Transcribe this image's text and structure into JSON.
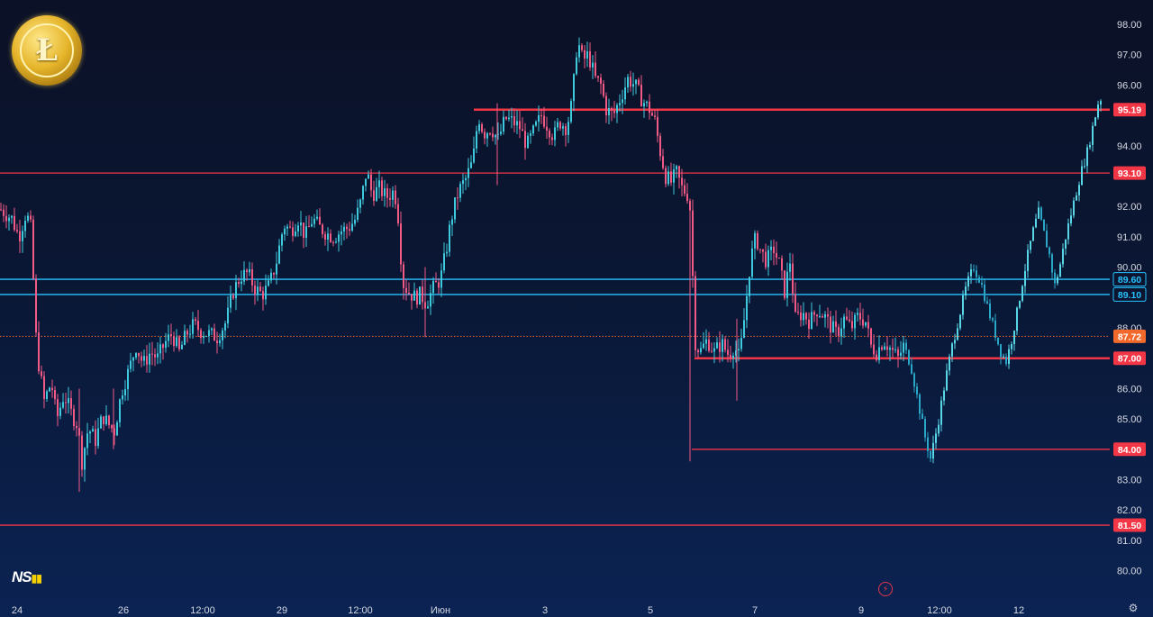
{
  "chart_data": {
    "type": "candlestick",
    "y_axis": {
      "min": 79.5,
      "max": 98.3,
      "ticks": [
        "98.00",
        "97.00",
        "96.00",
        "94.00",
        "92.00",
        "91.00",
        "90.00",
        "88.00",
        "86.00",
        "85.00",
        "84.00",
        "83.00",
        "82.00",
        "81.00",
        "80.00"
      ]
    },
    "x_axis": {
      "ticks": [
        "24",
        "26",
        "12:00",
        "29",
        "12:00",
        "Июн",
        "3",
        "5",
        "7",
        "9",
        "12:00",
        "12"
      ]
    },
    "price_levels": [
      {
        "value": 95.19,
        "label": "95.19",
        "color": "#f23645",
        "style": "solid-thick"
      },
      {
        "value": 93.1,
        "label": "93.10",
        "color": "#f23645",
        "style": "solid"
      },
      {
        "value": 89.6,
        "label": "89.60",
        "color": "#27c3ff",
        "style": "solid"
      },
      {
        "value": 89.1,
        "label": "89.10",
        "color": "#27c3ff",
        "style": "solid"
      },
      {
        "value": 87.72,
        "label": "87.72",
        "color": "#f2692b",
        "style": "dotted"
      },
      {
        "value": 87.0,
        "label": "87.00",
        "color": "#f23645",
        "style": "solid-thick"
      },
      {
        "value": 84.0,
        "label": "84.00",
        "color": "#f23645",
        "style": "solid"
      },
      {
        "value": 81.5,
        "label": "81.50",
        "color": "#f23645",
        "style": "solid"
      }
    ],
    "price_path": [
      [
        0,
        91.9
      ],
      [
        12,
        91.6
      ],
      [
        20,
        91.0
      ],
      [
        28,
        91.8
      ],
      [
        34,
        91.2
      ],
      [
        38,
        88.0
      ],
      [
        42,
        86.8
      ],
      [
        48,
        85.6
      ],
      [
        56,
        86.2
      ],
      [
        62,
        85.0
      ],
      [
        70,
        85.8
      ],
      [
        78,
        85.2
      ],
      [
        85,
        84.8
      ],
      [
        90,
        83.6
      ],
      [
        97,
        84.7
      ],
      [
        105,
        84.3
      ],
      [
        113,
        85.1
      ],
      [
        120,
        84.8
      ],
      [
        126,
        84.6
      ],
      [
        134,
        85.9
      ],
      [
        142,
        86.6
      ],
      [
        150,
        87.4
      ],
      [
        158,
        86.8
      ],
      [
        166,
        87.2
      ],
      [
        174,
        87.0
      ],
      [
        182,
        87.5
      ],
      [
        190,
        87.8
      ],
      [
        198,
        87.2
      ],
      [
        206,
        87.8
      ],
      [
        214,
        88.1
      ],
      [
        222,
        87.9
      ],
      [
        230,
        87.8
      ],
      [
        240,
        87.7
      ],
      [
        250,
        88.2
      ],
      [
        258,
        89.2
      ],
      [
        266,
        89.7
      ],
      [
        274,
        89.8
      ],
      [
        282,
        89.3
      ],
      [
        290,
        89.1
      ],
      [
        298,
        89.4
      ],
      [
        306,
        90.2
      ],
      [
        314,
        91.4
      ],
      [
        322,
        91.2
      ],
      [
        330,
        91.6
      ],
      [
        338,
        91.0
      ],
      [
        346,
        91.6
      ],
      [
        354,
        91.3
      ],
      [
        362,
        91.1
      ],
      [
        370,
        91.0
      ],
      [
        378,
        91.2
      ],
      [
        386,
        91.3
      ],
      [
        394,
        91.6
      ],
      [
        400,
        92.2
      ],
      [
        406,
        93.2
      ],
      [
        412,
        92.4
      ],
      [
        420,
        92.6
      ],
      [
        428,
        92.3
      ],
      [
        436,
        92.5
      ],
      [
        440,
        92.1
      ],
      [
        446,
        89.5
      ],
      [
        452,
        89.2
      ],
      [
        460,
        89.0
      ],
      [
        466,
        89.1
      ],
      [
        472,
        88.8
      ],
      [
        480,
        89.3
      ],
      [
        488,
        89.6
      ],
      [
        494,
        90.5
      ],
      [
        500,
        91.6
      ],
      [
        508,
        92.5
      ],
      [
        516,
        92.9
      ],
      [
        524,
        93.5
      ],
      [
        530,
        95.0
      ],
      [
        536,
        94.4
      ],
      [
        544,
        94.6
      ],
      [
        552,
        94.2
      ],
      [
        560,
        94.9
      ],
      [
        568,
        94.8
      ],
      [
        576,
        94.6
      ],
      [
        584,
        94.0
      ],
      [
        592,
        94.5
      ],
      [
        600,
        95.0
      ],
      [
        608,
        94.6
      ],
      [
        614,
        94.3
      ],
      [
        620,
        94.8
      ],
      [
        628,
        94.6
      ],
      [
        634,
        95.4
      ],
      [
        640,
        97.5
      ],
      [
        646,
        96.8
      ],
      [
        652,
        97.0
      ],
      [
        660,
        96.2
      ],
      [
        666,
        96.0
      ],
      [
        672,
        95.2
      ],
      [
        680,
        95.0
      ],
      [
        688,
        95.6
      ],
      [
        696,
        96.2
      ],
      [
        704,
        96.0
      ],
      [
        712,
        95.5
      ],
      [
        720,
        95.2
      ],
      [
        726,
        94.8
      ],
      [
        732,
        93.8
      ],
      [
        738,
        93.0
      ],
      [
        744,
        92.8
      ],
      [
        750,
        93.1
      ],
      [
        756,
        92.6
      ],
      [
        762,
        92.4
      ],
      [
        766,
        91.8
      ],
      [
        770,
        87.6
      ],
      [
        776,
        87.2
      ],
      [
        784,
        87.6
      ],
      [
        792,
        87.2
      ],
      [
        800,
        87.5
      ],
      [
        808,
        87.1
      ],
      [
        814,
        87.4
      ],
      [
        820,
        87.0
      ],
      [
        826,
        88.5
      ],
      [
        832,
        90.2
      ],
      [
        838,
        91.0
      ],
      [
        844,
        90.5
      ],
      [
        850,
        90.2
      ],
      [
        858,
        90.6
      ],
      [
        864,
        90.1
      ],
      [
        870,
        89.2
      ],
      [
        876,
        90.2
      ],
      [
        882,
        88.3
      ],
      [
        890,
        88.5
      ],
      [
        898,
        88.2
      ],
      [
        906,
        88.6
      ],
      [
        914,
        88.4
      ],
      [
        920,
        88.1
      ],
      [
        928,
        87.8
      ],
      [
        936,
        88.3
      ],
      [
        944,
        88.0
      ],
      [
        952,
        88.4
      ],
      [
        960,
        88.2
      ],
      [
        966,
        87.4
      ],
      [
        972,
        87.2
      ],
      [
        980,
        87.6
      ],
      [
        988,
        87.3
      ],
      [
        996,
        87.0
      ],
      [
        1002,
        87.4
      ],
      [
        1010,
        86.8
      ],
      [
        1018,
        85.6
      ],
      [
        1026,
        84.4
      ],
      [
        1032,
        83.7
      ],
      [
        1040,
        84.8
      ],
      [
        1048,
        86.2
      ],
      [
        1056,
        87.4
      ],
      [
        1064,
        88.4
      ],
      [
        1072,
        89.4
      ],
      [
        1080,
        90.0
      ],
      [
        1088,
        89.5
      ],
      [
        1096,
        88.6
      ],
      [
        1104,
        87.8
      ],
      [
        1110,
        87.2
      ],
      [
        1116,
        86.9
      ],
      [
        1122,
        87.6
      ],
      [
        1128,
        88.5
      ],
      [
        1134,
        89.5
      ],
      [
        1140,
        90.4
      ],
      [
        1146,
        91.2
      ],
      [
        1152,
        91.8
      ],
      [
        1158,
        91.1
      ],
      [
        1164,
        90.4
      ],
      [
        1170,
        89.4
      ],
      [
        1176,
        90.1
      ],
      [
        1182,
        91.0
      ],
      [
        1190,
        92.0
      ],
      [
        1198,
        93.0
      ],
      [
        1206,
        93.8
      ],
      [
        1212,
        94.6
      ],
      [
        1218,
        95.4
      ],
      [
        1222,
        95.6
      ]
    ]
  }
}
